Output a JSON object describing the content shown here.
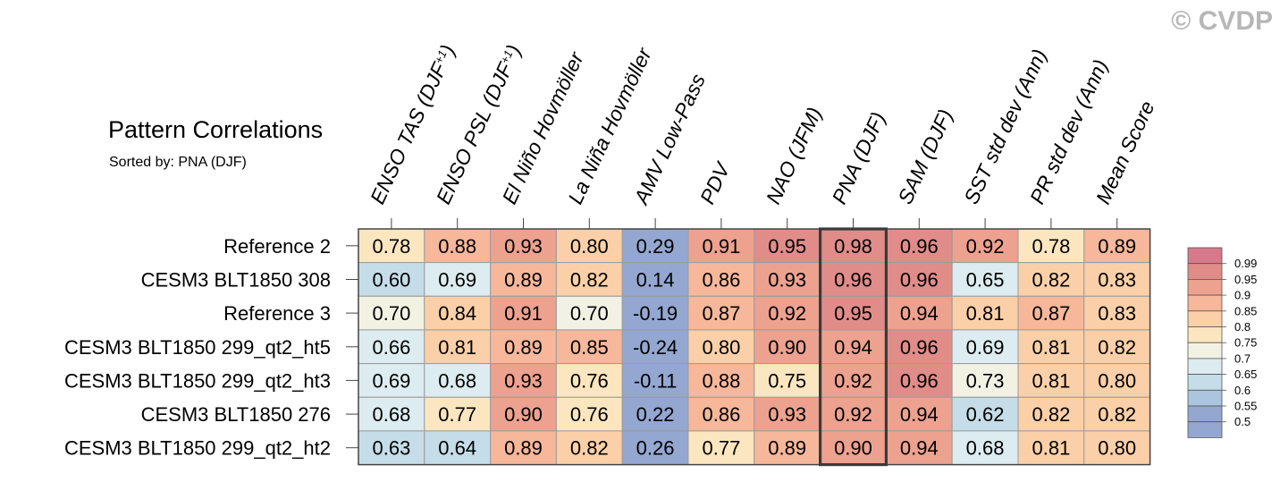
{
  "copyright": "© CVDP",
  "chart_data": {
    "type": "heatmap",
    "title": "Pattern Correlations",
    "subtitle": "Sorted by: PNA (DJF)",
    "columns": [
      "ENSO TAS (DJF+1)",
      "ENSO PSL (DJF+1)",
      "El Niño Hovmöller",
      "La Niña Hovmöller",
      "AMV Low-Pass",
      "PDV",
      "NAO (JFM)",
      "PNA (DJF)",
      "SAM (DJF)",
      "SST std dev (Ann)",
      "PR std dev (Ann)",
      "Mean Score"
    ],
    "rows": [
      "Reference 2",
      "CESM3 BLT1850 308",
      "Reference 3",
      "CESM3 BLT1850 299_qt2_ht5",
      "CESM3 BLT1850 299_qt2_ht3",
      "CESM3 BLT1850 276",
      "CESM3 BLT1850 299_qt2_ht2"
    ],
    "values": [
      [
        "0.78",
        "0.88",
        "0.93",
        "0.80",
        "0.29",
        "0.91",
        "0.95",
        "0.98",
        "0.96",
        "0.92",
        "0.78",
        "0.89"
      ],
      [
        "0.60",
        "0.69",
        "0.89",
        "0.82",
        "0.14",
        "0.86",
        "0.93",
        "0.96",
        "0.96",
        "0.65",
        "0.82",
        "0.83"
      ],
      [
        "0.70",
        "0.84",
        "0.91",
        "0.70",
        "-0.19",
        "0.87",
        "0.92",
        "0.95",
        "0.94",
        "0.81",
        "0.87",
        "0.83"
      ],
      [
        "0.66",
        "0.81",
        "0.89",
        "0.85",
        "-0.24",
        "0.80",
        "0.90",
        "0.94",
        "0.96",
        "0.69",
        "0.81",
        "0.82"
      ],
      [
        "0.69",
        "0.68",
        "0.93",
        "0.76",
        "-0.11",
        "0.88",
        "0.75",
        "0.92",
        "0.96",
        "0.73",
        "0.81",
        "0.80"
      ],
      [
        "0.68",
        "0.77",
        "0.90",
        "0.76",
        "0.22",
        "0.86",
        "0.93",
        "0.92",
        "0.94",
        "0.62",
        "0.82",
        "0.82"
      ],
      [
        "0.63",
        "0.64",
        "0.89",
        "0.82",
        "0.26",
        "0.77",
        "0.89",
        "0.90",
        "0.94",
        "0.68",
        "0.81",
        "0.80"
      ]
    ],
    "highlight_column": "PNA (DJF)",
    "colorbar": {
      "labels": [
        "0.99",
        "0.95",
        "0.9",
        "0.85",
        "0.8",
        "0.75",
        "0.7",
        "0.65",
        "0.6",
        "0.55",
        "0.5"
      ],
      "colors": [
        "#d67a8b",
        "#e08c89",
        "#eda18f",
        "#f6b79a",
        "#fbd0a8",
        "#fbe6bf",
        "#f2f2e4",
        "#dcecf1",
        "#c5dde9",
        "#aac5dd",
        "#93a7d0",
        "#93a7d0"
      ]
    }
  }
}
